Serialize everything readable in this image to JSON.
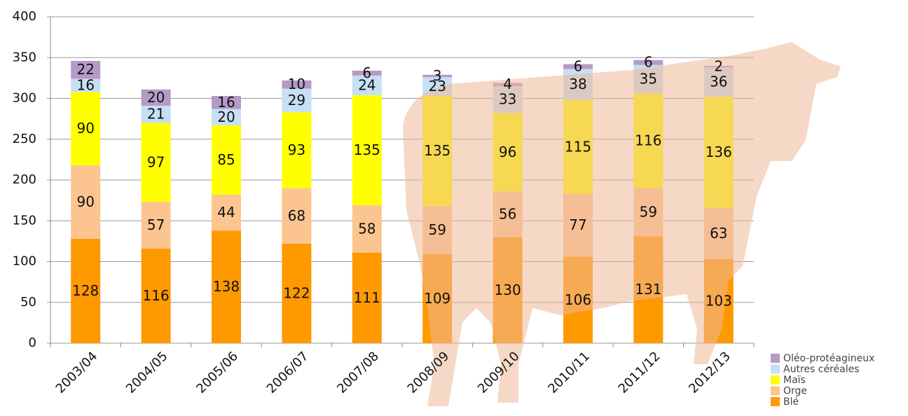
{
  "chart_data": {
    "type": "stacked-bar",
    "categories": [
      "2003/04",
      "2004/05",
      "2005/06",
      "2006/07",
      "2007/08",
      "2008/09",
      "2009/10",
      "2010/11",
      "2011/12",
      "2012/13"
    ],
    "series": [
      {
        "name": "Blé",
        "color": "#ff9900",
        "values": [
          128,
          116,
          138,
          122,
          111,
          109,
          130,
          106,
          131,
          103
        ]
      },
      {
        "name": "Orge",
        "color": "#fcc590",
        "values": [
          90,
          57,
          44,
          68,
          58,
          59,
          56,
          77,
          59,
          63
        ]
      },
      {
        "name": "Maïs",
        "color": "#ffff00",
        "values": [
          90,
          97,
          85,
          93,
          135,
          135,
          96,
          115,
          116,
          136
        ]
      },
      {
        "name": "Autres céréales",
        "color": "#c6e0f5",
        "values": [
          16,
          21,
          20,
          29,
          24,
          23,
          33,
          38,
          35,
          36
        ]
      },
      {
        "name": "Oléo-protéagineux",
        "color": "#b69ac6",
        "values": [
          22,
          20,
          16,
          10,
          6,
          3,
          4,
          6,
          6,
          2
        ]
      }
    ],
    "ylim": [
      0,
      400
    ],
    "yticks": [
      0,
      50,
      100,
      150,
      200,
      250,
      300,
      350,
      400
    ],
    "grid": true,
    "legend": "bottom-right"
  }
}
